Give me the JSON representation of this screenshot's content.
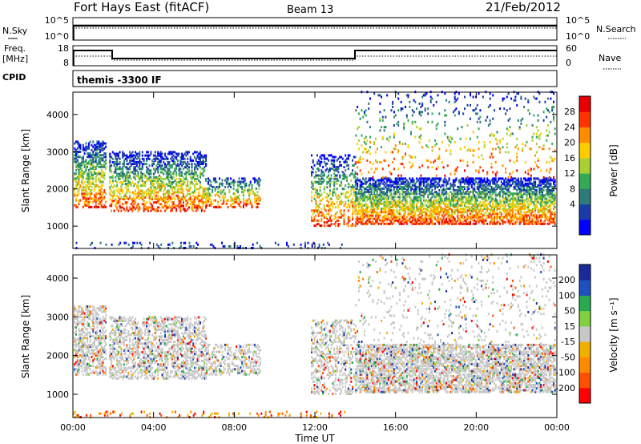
{
  "header": {
    "station": "Fort Hays East (fitACF)",
    "beam": "Beam 13",
    "date": "21/Feb/2012"
  },
  "top_panels": {
    "nsky_label": "N.Sky",
    "nsky_ticks": [
      "10^5",
      "10^0"
    ],
    "nsearch_label": "N.Search",
    "nsearch_ticks": [
      "10^5",
      "10^0"
    ],
    "freq_label_line1": "Freq.",
    "freq_label_line2": "[MHz]",
    "freq_ticks": [
      "18",
      "8"
    ],
    "nave_label": "Nave",
    "nave_ticks": [
      "60",
      "0"
    ],
    "cpid_label": "CPID",
    "cpid_text": "themis -3300 IF"
  },
  "chart_data": [
    {
      "type": "heatmap",
      "panel": "power",
      "title": "",
      "xlabel": "",
      "ylabel": "Slant Range [km]",
      "xlim": [
        0,
        24
      ],
      "ylim": [
        400,
        4600
      ],
      "yticks": [
        "1000",
        "2000",
        "3000",
        "4000"
      ],
      "colorbar": {
        "label": "Power [dB]",
        "ticks": [
          "28",
          "24",
          "20",
          "16",
          "12",
          "8",
          "4"
        ],
        "colors": [
          "#0000ff",
          "#1a3ca8",
          "#2f7a7a",
          "#33aa55",
          "#a8d030",
          "#ffcc00",
          "#ff8c00",
          "#ff3300",
          "#e60000"
        ]
      },
      "regions": [
        {
          "t": [
            0.05,
            1.65
          ],
          "r": [
            1500,
            3300
          ],
          "density": 0.5
        },
        {
          "t": [
            1.8,
            6.6
          ],
          "r": [
            1400,
            3000
          ],
          "density": 0.45
        },
        {
          "t": [
            6.6,
            9.3
          ],
          "r": [
            1500,
            2300
          ],
          "density": 0.35
        },
        {
          "t": [
            11.8,
            14.0
          ],
          "r": [
            1000,
            2900
          ],
          "density": 0.3
        },
        {
          "t": [
            14.0,
            23.9
          ],
          "r": [
            1050,
            2300
          ],
          "density": 0.6
        },
        {
          "t": [
            14.0,
            23.9
          ],
          "r": [
            2300,
            4600
          ],
          "density": 0.07
        },
        {
          "t": [
            0.0,
            13.5
          ],
          "r": [
            400,
            550
          ],
          "density": 0.12
        }
      ]
    },
    {
      "type": "heatmap",
      "panel": "velocity",
      "title": "",
      "xlabel": "Time UT",
      "ylabel": "Slant Range [km]",
      "xlim": [
        0,
        24
      ],
      "ylim": [
        400,
        4600
      ],
      "yticks": [
        "1000",
        "2000",
        "3000",
        "4000"
      ],
      "xticks": [
        "00:00",
        "04:00",
        "08:00",
        "12:00",
        "16:00",
        "20:00",
        "00:00"
      ],
      "colorbar": {
        "label": "Velocity [m s⁻¹]",
        "ticks": [
          "200",
          "100",
          "50",
          "15",
          "-15",
          "-50",
          "-100",
          "-200"
        ],
        "colors": [
          "#ff0000",
          "#ff5000",
          "#ff8a00",
          "#f0b000",
          "#c8c8c8",
          "#80d040",
          "#2aaa50",
          "#1e50c0",
          "#1a2a9a"
        ]
      },
      "regions": [
        {
          "t": [
            0.05,
            1.65
          ],
          "r": [
            1500,
            3300
          ],
          "density": 0.5
        },
        {
          "t": [
            1.8,
            6.6
          ],
          "r": [
            1400,
            3000
          ],
          "density": 0.45
        },
        {
          "t": [
            6.6,
            9.3
          ],
          "r": [
            1500,
            2300
          ],
          "density": 0.35
        },
        {
          "t": [
            11.8,
            14.0
          ],
          "r": [
            1000,
            2900
          ],
          "density": 0.3
        },
        {
          "t": [
            14.0,
            23.9
          ],
          "r": [
            1050,
            2300
          ],
          "density": 0.6
        },
        {
          "t": [
            14.0,
            23.9
          ],
          "r": [
            2300,
            4600
          ],
          "density": 0.07
        },
        {
          "t": [
            0.0,
            13.5
          ],
          "r": [
            400,
            550
          ],
          "density": 0.12
        }
      ]
    }
  ]
}
